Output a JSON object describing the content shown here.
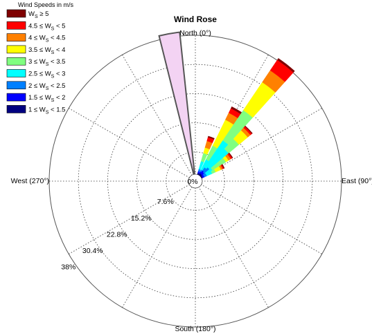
{
  "chart_data": {
    "type": "wind-rose",
    "title": "Wind Rose",
    "direction_labels": {
      "north": "North (0°)",
      "east": "East (90°)",
      "south": "South (180°)",
      "west": "West (270°)"
    },
    "radial_unit": "%",
    "radial_ticks": [
      "0%",
      "7.6%",
      "15.2%",
      "22.8%",
      "30.4%",
      "38%"
    ],
    "radial_tick_values": [
      0,
      7.6,
      15.2,
      22.8,
      30.4,
      38
    ],
    "radial_max": 38,
    "grid": true,
    "legend": {
      "title": "Wind Speeds in m/s",
      "placement": "top-left",
      "entries": [
        {
          "label": "Wₛ ≥ 5",
          "main": "W",
          "sub": "S",
          "rest": " ≥ 5",
          "color": "#7f0000"
        },
        {
          "label": "4.5 ≤ Wₛ < 5",
          "pre": "4.5 ≤ W",
          "sub": "S",
          "rest": " < 5",
          "color": "#ff0000"
        },
        {
          "label": "4 ≤ Wₛ < 4.5",
          "pre": "4 ≤ W",
          "sub": "S",
          "rest": " < 4.5",
          "color": "#ff8000"
        },
        {
          "label": "3.5 ≤ Wₛ < 4",
          "pre": "3.5 ≤ W",
          "sub": "S",
          "rest": " < 4",
          "color": "#ffff00"
        },
        {
          "label": "3 ≤ Wₛ < 3.5",
          "pre": "3 ≤ W",
          "sub": "S",
          "rest": " < 3.5",
          "color": "#80ff80"
        },
        {
          "label": "2.5 ≤ Wₛ < 3",
          "pre": "2.5 ≤ W",
          "sub": "S",
          "rest": " < 3",
          "color": "#00ffff"
        },
        {
          "label": "2 ≤ Wₛ < 2.5",
          "pre": "2 ≤ W",
          "sub": "S",
          "rest": " < 2.5",
          "color": "#0080ff"
        },
        {
          "label": "1.5 ≤ Wₛ < 2",
          "pre": "1.5 ≤ W",
          "sub": "S",
          "rest": " < 2",
          "color": "#0000ff"
        },
        {
          "label": "1 ≤ Wₛ < 1.5",
          "pre": "1 ≤ W",
          "sub": "S",
          "rest": " < 1.5",
          "color": "#000080"
        }
      ]
    },
    "sector_width_deg": 8,
    "bins": [
      "1-1.5",
      "1.5-2",
      "2-2.5",
      "2.5-3",
      "3-3.5",
      "3.5-4",
      "4-4.5",
      "4.5-5",
      ">=5"
    ],
    "sectors": [
      {
        "direction_deg": 20,
        "cumulative_pct": [
          0.4,
          0.9,
          1.5,
          3.6,
          5.8,
          7.3,
          9.1,
          10.1,
          10.4
        ]
      },
      {
        "direction_deg": 30,
        "cumulative_pct": [
          0.5,
          1.0,
          1.5,
          4.5,
          8.5,
          16.0,
          18.0,
          19.3,
          19.8
        ]
      },
      {
        "direction_deg": 38,
        "cumulative_pct": [
          0.6,
          1.5,
          2.5,
          11.0,
          20.5,
          29.3,
          33.0,
          36.3,
          36.8
        ]
      },
      {
        "direction_deg": 46,
        "cumulative_pct": [
          0.5,
          1.2,
          3.0,
          9.5,
          13.0,
          16.0,
          16.9,
          17.4,
          17.6
        ]
      },
      {
        "direction_deg": 54,
        "cumulative_pct": [
          0.3,
          0.8,
          1.5,
          3.5,
          7.6,
          8.4,
          9.1,
          9.5,
          9.7
        ]
      },
      {
        "direction_deg": 62,
        "cumulative_pct": [
          0.3,
          0.8,
          1.5,
          3.0,
          4.0,
          5.5,
          6.0,
          6.3,
          6.5
        ]
      },
      {
        "direction_deg": 350,
        "outline_only": true,
        "total_pct": 37.2
      }
    ]
  }
}
